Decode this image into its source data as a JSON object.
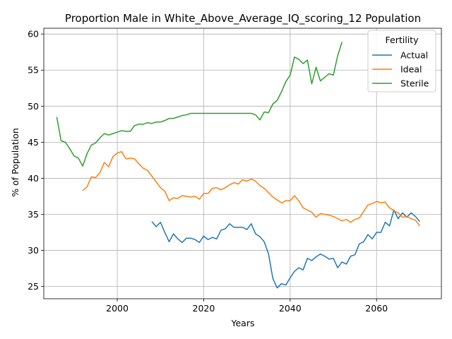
{
  "chart_data": {
    "type": "line",
    "title": "Proportion Male in White_Above_Average_IQ_scoring_12 Population",
    "xlabel": "Years",
    "ylabel": "% of Population",
    "xlim": [
      1983,
      2075
    ],
    "ylim": [
      23.3,
      60.8
    ],
    "xticks": [
      2000,
      2020,
      2040,
      2060
    ],
    "yticks": [
      25,
      30,
      35,
      40,
      45,
      50,
      55,
      60
    ],
    "grid": true,
    "legend": {
      "title": "Fertility",
      "placement": "top-right"
    },
    "series": [
      {
        "name": "Actual",
        "color": "#1f77b4",
        "points": [
          [
            2008,
            34.0
          ],
          [
            2009,
            33.3
          ],
          [
            2010,
            33.9
          ],
          [
            2011,
            32.5
          ],
          [
            2012,
            31.2
          ],
          [
            2013,
            32.3
          ],
          [
            2014,
            31.6
          ],
          [
            2015,
            31.1
          ],
          [
            2016,
            31.7
          ],
          [
            2017,
            31.7
          ],
          [
            2018,
            31.5
          ],
          [
            2019,
            31.1
          ],
          [
            2020,
            32.0
          ],
          [
            2021,
            31.5
          ],
          [
            2022,
            31.8
          ],
          [
            2023,
            31.6
          ],
          [
            2024,
            32.8
          ],
          [
            2025,
            33.0
          ],
          [
            2026,
            33.7
          ],
          [
            2027,
            33.2
          ],
          [
            2028,
            33.2
          ],
          [
            2029,
            33.2
          ],
          [
            2030,
            32.9
          ],
          [
            2031,
            33.7
          ],
          [
            2032,
            32.3
          ],
          [
            2033,
            31.9
          ],
          [
            2034,
            31.2
          ],
          [
            2035,
            29.5
          ],
          [
            2036,
            26.1
          ],
          [
            2037,
            24.8
          ],
          [
            2038,
            25.4
          ],
          [
            2039,
            25.2
          ],
          [
            2040,
            26.2
          ],
          [
            2041,
            27.1
          ],
          [
            2042,
            27.6
          ],
          [
            2043,
            27.3
          ],
          [
            2044,
            28.9
          ],
          [
            2045,
            28.6
          ],
          [
            2046,
            29.1
          ],
          [
            2047,
            29.5
          ],
          [
            2048,
            29.2
          ],
          [
            2049,
            28.8
          ],
          [
            2050,
            28.9
          ],
          [
            2051,
            27.6
          ],
          [
            2052,
            28.4
          ],
          [
            2053,
            28.1
          ],
          [
            2054,
            29.2
          ],
          [
            2055,
            29.4
          ],
          [
            2056,
            30.9
          ],
          [
            2057,
            31.2
          ],
          [
            2058,
            32.2
          ],
          [
            2059,
            31.6
          ],
          [
            2060,
            32.5
          ],
          [
            2061,
            32.5
          ],
          [
            2062,
            33.9
          ],
          [
            2063,
            33.4
          ],
          [
            2064,
            35.6
          ],
          [
            2065,
            34.4
          ],
          [
            2066,
            35.2
          ],
          [
            2067,
            34.6
          ],
          [
            2068,
            35.2
          ],
          [
            2069,
            34.7
          ],
          [
            2070,
            34.0
          ]
        ]
      },
      {
        "name": "Ideal",
        "color": "#ff7f0e",
        "points": [
          [
            1992,
            38.3
          ],
          [
            1993,
            38.8
          ],
          [
            1994,
            40.2
          ],
          [
            1995,
            40.1
          ],
          [
            1996,
            40.8
          ],
          [
            1997,
            42.2
          ],
          [
            1998,
            41.6
          ],
          [
            1999,
            43.0
          ],
          [
            2000,
            43.5
          ],
          [
            2001,
            43.7
          ],
          [
            2002,
            42.7
          ],
          [
            2003,
            42.8
          ],
          [
            2004,
            42.7
          ],
          [
            2005,
            42.0
          ],
          [
            2006,
            41.4
          ],
          [
            2007,
            41.1
          ],
          [
            2008,
            40.3
          ],
          [
            2009,
            39.5
          ],
          [
            2010,
            38.7
          ],
          [
            2011,
            38.2
          ],
          [
            2012,
            36.9
          ],
          [
            2013,
            37.3
          ],
          [
            2014,
            37.2
          ],
          [
            2015,
            37.6
          ],
          [
            2016,
            37.5
          ],
          [
            2017,
            37.4
          ],
          [
            2018,
            37.5
          ],
          [
            2019,
            37.1
          ],
          [
            2020,
            37.9
          ],
          [
            2021,
            37.9
          ],
          [
            2022,
            38.6
          ],
          [
            2023,
            38.7
          ],
          [
            2024,
            38.4
          ],
          [
            2025,
            38.7
          ],
          [
            2026,
            39.1
          ],
          [
            2027,
            39.4
          ],
          [
            2028,
            39.2
          ],
          [
            2029,
            39.8
          ],
          [
            2030,
            39.6
          ],
          [
            2031,
            39.9
          ],
          [
            2032,
            39.6
          ],
          [
            2033,
            39.0
          ],
          [
            2034,
            38.6
          ],
          [
            2035,
            38.0
          ],
          [
            2036,
            37.4
          ],
          [
            2037,
            37.0
          ],
          [
            2038,
            36.6
          ],
          [
            2039,
            36.9
          ],
          [
            2040,
            36.9
          ],
          [
            2041,
            37.6
          ],
          [
            2042,
            36.9
          ],
          [
            2043,
            35.9
          ],
          [
            2044,
            35.6
          ],
          [
            2045,
            35.3
          ],
          [
            2046,
            34.6
          ],
          [
            2047,
            35.1
          ],
          [
            2048,
            35.0
          ],
          [
            2049,
            34.9
          ],
          [
            2050,
            34.7
          ],
          [
            2051,
            34.4
          ],
          [
            2052,
            34.1
          ],
          [
            2053,
            34.3
          ],
          [
            2054,
            33.9
          ],
          [
            2055,
            34.3
          ],
          [
            2056,
            34.5
          ],
          [
            2057,
            35.4
          ],
          [
            2058,
            36.3
          ],
          [
            2059,
            36.5
          ],
          [
            2060,
            36.8
          ],
          [
            2061,
            36.6
          ],
          [
            2062,
            36.7
          ],
          [
            2063,
            35.9
          ],
          [
            2064,
            35.5
          ],
          [
            2065,
            35.2
          ],
          [
            2066,
            34.6
          ],
          [
            2067,
            34.7
          ],
          [
            2068,
            34.4
          ],
          [
            2069,
            34.2
          ],
          [
            2070,
            33.4
          ]
        ]
      },
      {
        "name": "Sterile",
        "color": "#2ca02c",
        "points": [
          [
            1986,
            48.5
          ],
          [
            1987,
            45.2
          ],
          [
            1988,
            45.0
          ],
          [
            1989,
            44.1
          ],
          [
            1990,
            43.1
          ],
          [
            1991,
            42.8
          ],
          [
            1992,
            41.7
          ],
          [
            1993,
            43.4
          ],
          [
            1994,
            44.6
          ],
          [
            1995,
            44.9
          ],
          [
            1996,
            45.6
          ],
          [
            1997,
            46.2
          ],
          [
            1998,
            46.0
          ],
          [
            1999,
            46.2
          ],
          [
            2000,
            46.4
          ],
          [
            2001,
            46.6
          ],
          [
            2002,
            46.5
          ],
          [
            2003,
            46.5
          ],
          [
            2004,
            47.3
          ],
          [
            2005,
            47.5
          ],
          [
            2006,
            47.5
          ],
          [
            2007,
            47.7
          ],
          [
            2008,
            47.6
          ],
          [
            2009,
            47.8
          ],
          [
            2010,
            47.8
          ],
          [
            2011,
            48.0
          ],
          [
            2012,
            48.3
          ],
          [
            2013,
            48.3
          ],
          [
            2014,
            48.5
          ],
          [
            2015,
            48.7
          ],
          [
            2016,
            48.8
          ],
          [
            2017,
            49.0
          ],
          [
            2018,
            49.0
          ],
          [
            2019,
            49.0
          ],
          [
            2020,
            49.0
          ],
          [
            2021,
            49.0
          ],
          [
            2022,
            49.0
          ],
          [
            2023,
            49.0
          ],
          [
            2024,
            49.0
          ],
          [
            2025,
            49.0
          ],
          [
            2026,
            49.0
          ],
          [
            2027,
            49.0
          ],
          [
            2028,
            49.0
          ],
          [
            2029,
            49.0
          ],
          [
            2030,
            49.0
          ],
          [
            2031,
            49.0
          ],
          [
            2032,
            48.8
          ],
          [
            2033,
            48.1
          ],
          [
            2034,
            49.2
          ],
          [
            2035,
            49.1
          ],
          [
            2036,
            50.3
          ],
          [
            2037,
            50.8
          ],
          [
            2038,
            52.0
          ],
          [
            2039,
            53.4
          ],
          [
            2040,
            54.3
          ],
          [
            2041,
            56.8
          ],
          [
            2042,
            56.5
          ],
          [
            2043,
            55.9
          ],
          [
            2044,
            56.4
          ],
          [
            2045,
            53.1
          ],
          [
            2046,
            55.4
          ],
          [
            2047,
            53.5
          ],
          [
            2048,
            54.0
          ],
          [
            2049,
            54.5
          ],
          [
            2050,
            54.3
          ],
          [
            2051,
            57.0
          ],
          [
            2052,
            58.9
          ]
        ]
      }
    ]
  }
}
